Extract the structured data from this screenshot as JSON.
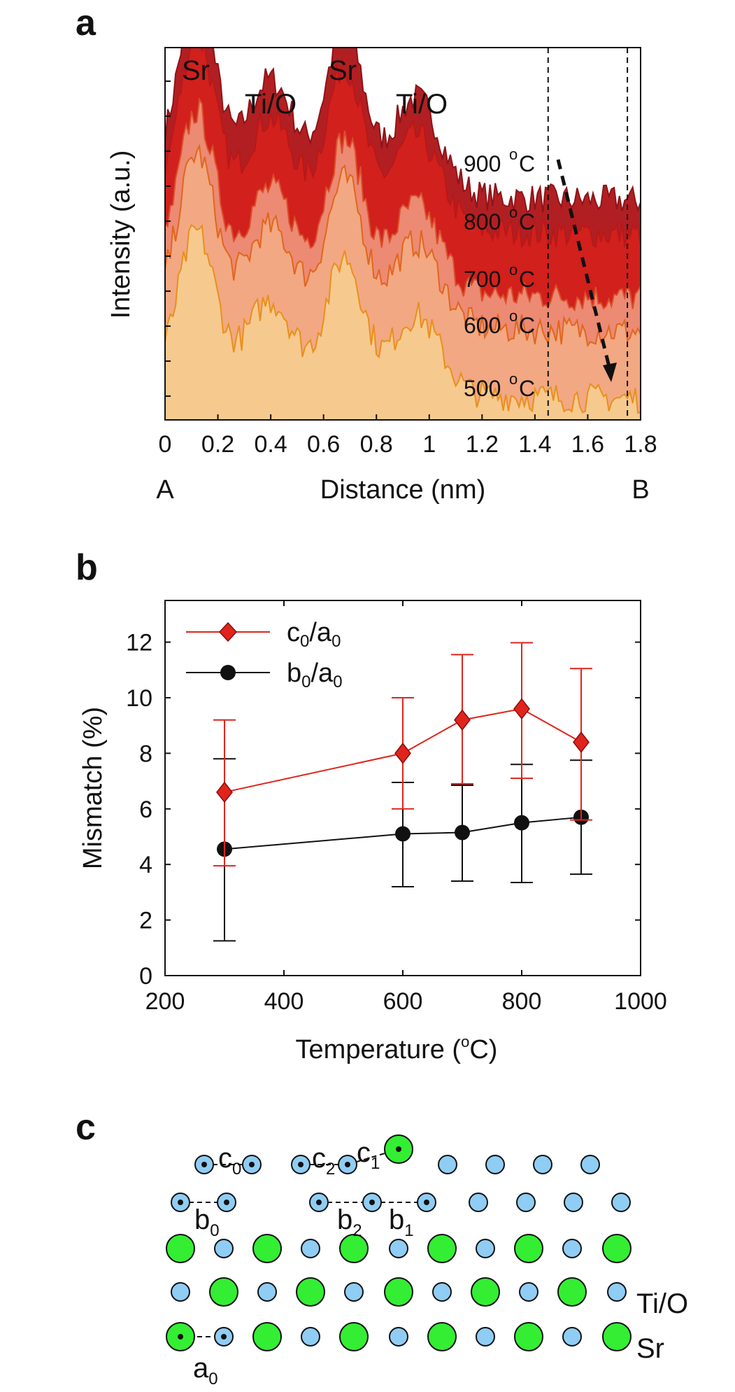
{
  "panels": {
    "a": "a",
    "b": "b",
    "c": "c"
  },
  "chart_data": [
    {
      "type": "area",
      "panel": "a",
      "xlabel": "Distance (nm)",
      "ylabel": "Intensity (a.u.)",
      "xlim": [
        0,
        1.8
      ],
      "xticks": [
        "0",
        "0.2",
        "0.4",
        "0.6",
        "0.8",
        "1",
        "1.2",
        "1.4",
        "1.6",
        "1.8"
      ],
      "end_labels": {
        "left": "A",
        "right": "B"
      },
      "peak_labels": [
        "Sr",
        "Ti/O",
        "Sr",
        "Ti/O"
      ],
      "series": [
        {
          "name": "500",
          "color": "#f6c98f",
          "line": "#e8901c",
          "offset": 0.05,
          "amp": 0.42
        },
        {
          "name": "600",
          "color": "#f2a882",
          "line": "#e0661e",
          "offset": 0.23,
          "amp": 0.45
        },
        {
          "name": "700",
          "color": "#ec8a73",
          "line": "#d94f2a",
          "offset": 0.32,
          "amp": 0.47
        },
        {
          "name": "800",
          "color": "#d2201c",
          "line": "#b81818",
          "offset": 0.49,
          "amp": 0.5
        },
        {
          "name": "900",
          "color": "#b21f22",
          "line": "#8e1418",
          "offset": 0.58,
          "amp": 0.52
        }
      ],
      "degree_unit": "C",
      "degree_sup": "o",
      "vlines_x": [
        1.45,
        1.75
      ]
    },
    {
      "type": "line",
      "panel": "b",
      "xlabel": "Temperature (°C)",
      "xlabel_parts": [
        "Temperature (",
        "o",
        "C)"
      ],
      "ylabel": "Mismatch (%)",
      "xlim": [
        200,
        1000
      ],
      "ylim": [
        0,
        13.5
      ],
      "xticks": [
        200,
        400,
        600,
        800,
        1000
      ],
      "yticks": [
        0,
        2,
        4,
        6,
        8,
        10,
        12
      ],
      "series": [
        {
          "name": "c0/a0",
          "legend_main": "c",
          "legend_sub1": "0",
          "legend_mid": "/a",
          "legend_sub2": "0",
          "color": "#e0241c",
          "marker": "diamond",
          "x": [
            300,
            600,
            700,
            800,
            900
          ],
          "y": [
            6.6,
            8.0,
            9.2,
            9.6,
            8.4
          ],
          "err_low": [
            3.95,
            6.0,
            6.9,
            7.1,
            5.6
          ],
          "err_high": [
            9.2,
            10.0,
            11.55,
            11.98,
            11.05
          ]
        },
        {
          "name": "b0/a0",
          "legend_main": "b",
          "legend_sub1": "0",
          "legend_mid": "/a",
          "legend_sub2": "0",
          "color": "#111111",
          "marker": "circle",
          "x": [
            300,
            600,
            700,
            800,
            900
          ],
          "y": [
            4.55,
            5.1,
            5.15,
            5.5,
            5.7
          ],
          "err_low": [
            1.25,
            3.2,
            3.4,
            3.35,
            3.65
          ],
          "err_high": [
            7.8,
            6.95,
            6.85,
            7.6,
            7.75
          ]
        }
      ]
    }
  ],
  "panel_c": {
    "labels": {
      "c0": {
        "main": "c",
        "sub": "0"
      },
      "c2": {
        "main": "c",
        "sub": "2"
      },
      "c1": {
        "main": "c",
        "sub": "1"
      },
      "b0": {
        "main": "b",
        "sub": "0"
      },
      "b2": {
        "main": "b",
        "sub": "2"
      },
      "b1": {
        "main": "b",
        "sub": "1"
      },
      "a0": {
        "main": "a",
        "sub": "0"
      }
    },
    "row_labels": {
      "tio": "Ti/O",
      "sr": "Sr"
    },
    "colors": {
      "ti": "#8fcdf4",
      "sr": "#33ee33",
      "outline": "#111111"
    }
  }
}
